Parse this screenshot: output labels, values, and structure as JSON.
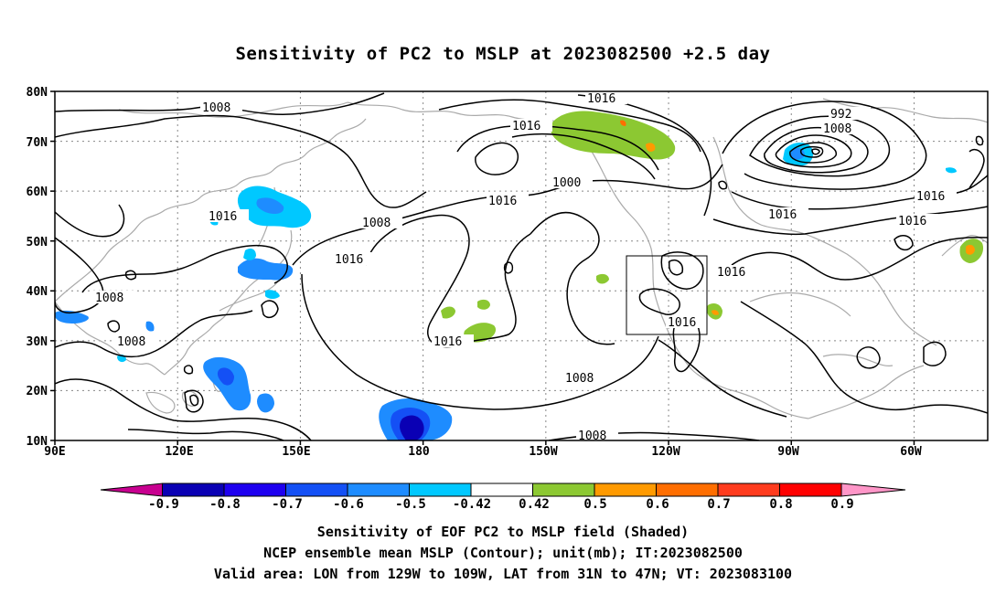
{
  "title": "Sensitivity of PC2 to MSLP at 2023082500 +2.5 day",
  "map": {
    "lat_labels": [
      "80N",
      "70N",
      "60N",
      "50N",
      "40N",
      "30N",
      "20N",
      "10N"
    ],
    "lon_labels": [
      "90E",
      "120E",
      "150E",
      "180",
      "150W",
      "120W",
      "90W",
      "60W"
    ],
    "contour_labels": [
      "1008",
      "1016",
      "1008",
      "1016",
      "1008",
      "1016",
      "1008",
      "1016",
      "1016",
      "1016",
      "1000",
      "992",
      "1008",
      "1016",
      "1016",
      "1016",
      "1016",
      "1008",
      "1008",
      "1016"
    ],
    "valid_area": {
      "lon_from": "129W",
      "lon_to": "109W",
      "lat_from": "31N",
      "lat_to": "47N"
    }
  },
  "colorbar": {
    "labels": [
      "-0.9",
      "-0.8",
      "-0.7",
      "-0.6",
      "-0.5",
      "-0.42",
      "0.42",
      "0.5",
      "0.6",
      "0.7",
      "0.8",
      "0.9"
    ],
    "colors": [
      "#c80090",
      "#0a00b4",
      "#1e00f0",
      "#1450f5",
      "#1e8cff",
      "#00c8ff",
      "#ffffff",
      "#8cc832",
      "#ff9a00",
      "#ff6e00",
      "#ff3c1e",
      "#ff0000",
      "#ff96c8"
    ]
  },
  "captions": {
    "line1": "Sensitivity of EOF PC2 to MSLP field (Shaded)",
    "line2": "NCEP ensemble mean MSLP (Contour); unit(mb); IT:2023082500",
    "line3": "Valid area: LON from 129W to 109W, LAT from 31N to 47N; VT: 2023083100"
  }
}
